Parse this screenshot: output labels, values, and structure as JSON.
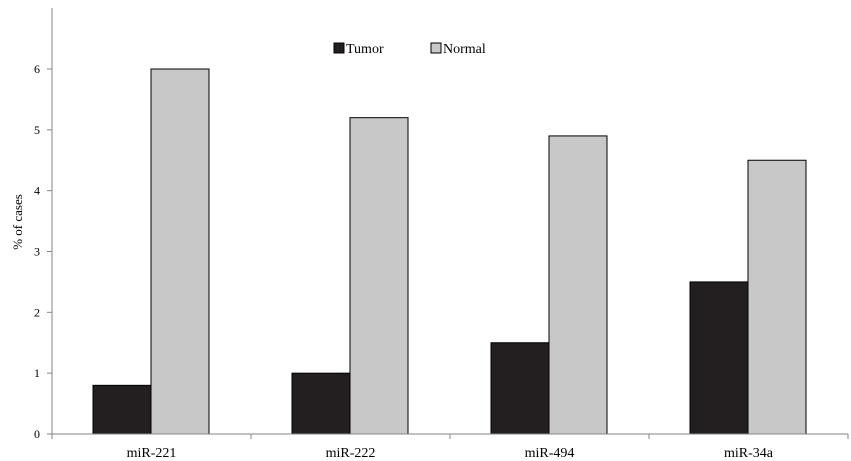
{
  "chart_data": {
    "type": "bar",
    "title": "",
    "xlabel": "",
    "ylabel": "% of cases",
    "categories": [
      "miR-221",
      "miR-222",
      "miR-494",
      "miR-34a"
    ],
    "series": [
      {
        "name": "Tumor",
        "values": [
          0.8,
          1.0,
          1.5,
          2.5
        ],
        "color": "#231f20"
      },
      {
        "name": "Normal",
        "values": [
          6.0,
          5.2,
          4.9,
          4.5
        ],
        "color": "#c8c8c8"
      }
    ],
    "ylim": [
      0,
      7
    ],
    "yticks": [
      "0",
      "1",
      "2",
      "3",
      "4",
      "5",
      "6"
    ],
    "grid": false,
    "legend_position": "top-center"
  }
}
